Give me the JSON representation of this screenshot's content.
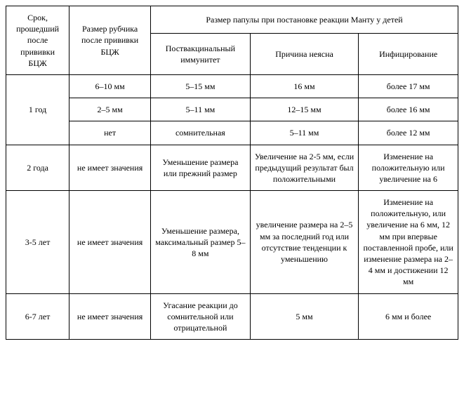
{
  "header": {
    "period": "Срок, прошедший после прививки БЦЖ",
    "scar": "Размер рубчика после прививки БЦЖ",
    "papule_group": "Размер папулы при постановке реакции Манту у детей",
    "postvac": "Поствакцинальный иммунитет",
    "unclear": "Причина неясна",
    "infection": "Инфицирование"
  },
  "rows": {
    "y1": {
      "period": "1 год",
      "a_scar": "6–10 мм",
      "a_postvac": "5–15 мм",
      "a_unclear": "16 мм",
      "a_infection": "более 17 мм",
      "b_scar": "2–5 мм",
      "b_postvac": "5–11 мм",
      "b_unclear": "12–15 мм",
      "b_infection": "более 16 мм",
      "c_scar": "нет",
      "c_postvac": "сомнительная",
      "c_unclear": "5–11 мм",
      "c_infection": "более 12 мм"
    },
    "y2": {
      "period": "2 года",
      "scar": "не имеет значения",
      "postvac": "Уменьшение размера или прежний размер",
      "unclear": "Увеличение на 2-5 мм, если предыдущий результат был положительными",
      "infection": "Изменение на положительную или увеличение на 6"
    },
    "y35": {
      "period": "3-5 лет",
      "scar": "не имеет значения",
      "postvac": "Уменьшение размера, максимальный размер 5–8 мм",
      "unclear": "увеличение размера на 2–5 мм за последний год или отсутствие тенденции к уменьшению",
      "infection": "Изменение на положительную, или увеличение на 6 мм, 12 мм при впервые поставленной пробе, или изменение размера на 2–4 мм и достижении 12 мм"
    },
    "y67": {
      "period": "6-7 лет",
      "scar": "не имеет значения",
      "postvac": "Угасание реакции до сомнительной или отрицательной",
      "unclear": "5 мм",
      "infection": "6 мм и более"
    }
  },
  "styling": {
    "font_family": "Georgia, Times New Roman, serif",
    "font_size_pt": 12,
    "border_color": "#000000",
    "background": "#ffffff",
    "text_align": "center",
    "col_widths_pct": [
      14,
      18,
      22,
      24,
      22
    ]
  }
}
